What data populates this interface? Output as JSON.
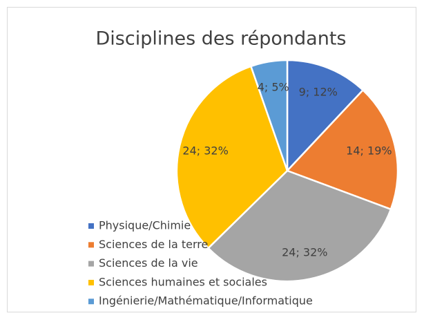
{
  "chart_data": {
    "type": "pie",
    "title": "Disciplines des répondants",
    "categories": [
      "Physique/Chimie",
      "Sciences de la terre",
      "Sciences de la vie",
      "Sciences humaines et sociales",
      "Ingénierie/Mathématique/Informatique"
    ],
    "values": [
      9,
      14,
      24,
      24,
      4
    ],
    "value_labels": [
      "9; 12%",
      "14; 19%",
      "24; 32%",
      "24; 32%",
      "4; 5%"
    ],
    "colors": [
      "#4472c4",
      "#ed7d31",
      "#a5a5a5",
      "#ffc000",
      "#5b9bd5"
    ],
    "legend": "bottom-left"
  }
}
